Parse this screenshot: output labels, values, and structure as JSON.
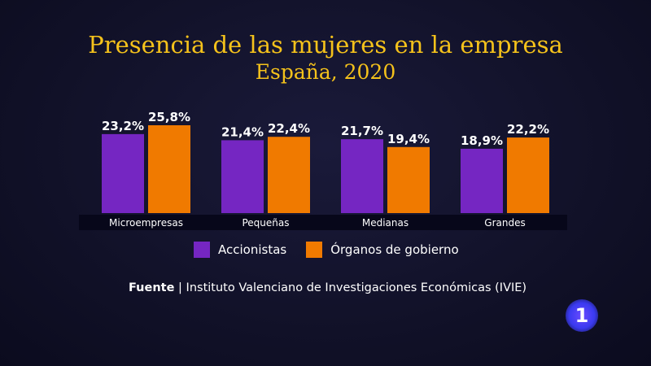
{
  "chart_data": {
    "type": "bar",
    "title": "Presencia de las mujeres en la empresa",
    "subtitle": "España, 2020",
    "categories": [
      "Microempresas",
      "Pequeñas",
      "Medianas",
      "Grandes"
    ],
    "series": [
      {
        "name": "Accionistas",
        "color": "#7526c2",
        "values": [
          23.2,
          21.4,
          21.7,
          18.9
        ],
        "labels": [
          "23,2%",
          "21,4%",
          "21,7%",
          "18,9%"
        ]
      },
      {
        "name": "Órganos de gobierno",
        "color": "#f07a00",
        "values": [
          25.8,
          22.4,
          19.4,
          22.2
        ],
        "labels": [
          "25,8%",
          "22,4%",
          "19,4%",
          "22,2%"
        ]
      }
    ],
    "ylim": [
      0,
      26
    ],
    "grid": false,
    "legend": "bottom"
  },
  "source": {
    "label": "Fuente",
    "separator": "|",
    "text": "Instituto Valenciano de Investigaciones Económicas (IVIE)"
  },
  "channel_logo": "1"
}
